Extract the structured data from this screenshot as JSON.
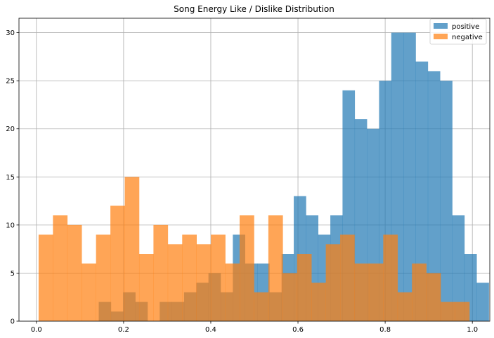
{
  "chart_data": {
    "type": "histogram",
    "title": "Song Energy Like / Dislike Distribution",
    "xlabel": "",
    "ylabel": "",
    "xlim": [
      -0.04,
      1.04
    ],
    "ylim": [
      0,
      31.5
    ],
    "x_ticks": [
      0.0,
      0.2,
      0.4,
      0.6,
      0.8,
      1.0
    ],
    "x_tick_labels": [
      "0.0",
      "0.2",
      "0.4",
      "0.6",
      "0.8",
      "1.0"
    ],
    "y_ticks": [
      0,
      5,
      10,
      15,
      20,
      25,
      30
    ],
    "y_tick_labels": [
      "0",
      "5",
      "10",
      "15",
      "20",
      "25",
      "30"
    ],
    "grid": true,
    "legend_position": "top-right",
    "series": [
      {
        "name": "positive",
        "color": "#1f77b4",
        "opacity": 0.7,
        "bin_start": 0.143,
        "bin_width": 0.02796,
        "counts": [
          2,
          1,
          3,
          2,
          0,
          2,
          2,
          3,
          4,
          5,
          3,
          9,
          6,
          6,
          3,
          7,
          13,
          11,
          9,
          11,
          24,
          21,
          20,
          25,
          30,
          30,
          27,
          26,
          25,
          11,
          7,
          4
        ]
      },
      {
        "name": "negative",
        "color": "#ff7f0e",
        "opacity": 0.7,
        "bin_start": 0.005,
        "bin_width": 0.03294,
        "counts": [
          9,
          11,
          10,
          6,
          9,
          12,
          15,
          7,
          10,
          8,
          9,
          8,
          9,
          6,
          11,
          3,
          11,
          5,
          7,
          4,
          8,
          9,
          6,
          6,
          9,
          3,
          6,
          5,
          2,
          2
        ]
      }
    ]
  }
}
